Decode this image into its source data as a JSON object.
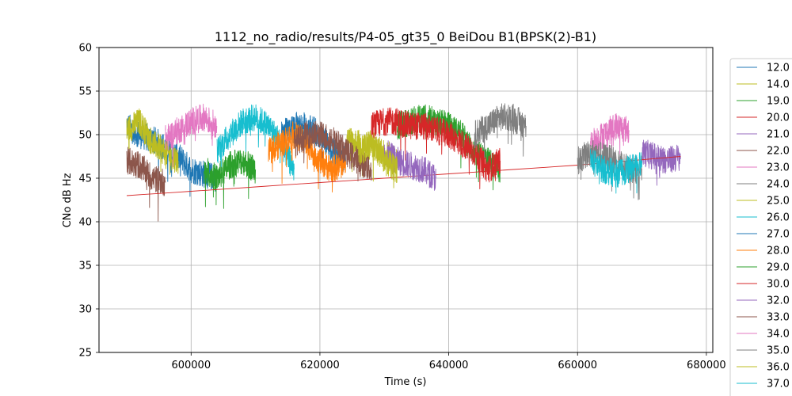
{
  "chart_data": {
    "type": "line",
    "title": "1112_no_radio/results/P4-05_gt35_0 BeiDou B1(BPSK(2)-B1)",
    "xlabel": "Time (s)",
    "ylabel": "CNo dB Hz",
    "xlim": [
      585700,
      681000
    ],
    "ylim": [
      25,
      60
    ],
    "xticks": [
      600000,
      620000,
      640000,
      660000,
      680000
    ],
    "yticks": [
      25,
      30,
      35,
      40,
      45,
      50,
      55,
      60
    ],
    "grid": true,
    "legend_position": "right, outside plot",
    "legend_visible_entries": [
      "12.0",
      "14.0",
      "19.0",
      "20.0",
      "21.0",
      "22.0",
      "23.0",
      "24.0",
      "25.0",
      "26.0",
      "27.0",
      "28.0",
      "29.0",
      "30.0",
      "32.0",
      "33.0",
      "34.0",
      "35.0",
      "36.0",
      "37.0"
    ],
    "series": [
      {
        "name": "12.0",
        "color": "#1f77b4",
        "x": [
          590000,
          592000,
          594000,
          596000,
          598000,
          600000,
          602000,
          604000
        ],
        "y": [
          51,
          50,
          49.5,
          48.5,
          47.5,
          46,
          45.5,
          45
        ]
      },
      {
        "name": "14.0",
        "color": "#bcbd22",
        "x": [
          590000,
          592000,
          594000,
          596000,
          598000
        ],
        "y": [
          50.5,
          51.5,
          49,
          48,
          47
        ]
      },
      {
        "name": "19.0",
        "color": "#2ca02c",
        "x": [
          632000,
          634000,
          636000,
          638000,
          640000,
          642000,
          644000,
          646000,
          648000
        ],
        "y": [
          51,
          51.5,
          52,
          51.5,
          51,
          50,
          48,
          47,
          46
        ]
      },
      {
        "name": "20.0",
        "color": "#d62728",
        "x": [
          628000,
          630000,
          632000,
          634000,
          636000,
          638000,
          640000,
          642000,
          644000,
          646000,
          648000
        ],
        "y": [
          51,
          51.5,
          51.5,
          51,
          51,
          50.5,
          50,
          49,
          48,
          46,
          47
        ]
      },
      {
        "name": "21.0",
        "color": "#9467bd",
        "x": [
          670000,
          672000,
          674000,
          676000
        ],
        "y": [
          48,
          47.5,
          47,
          47.5
        ]
      },
      {
        "name": "22.0",
        "color": "#8c564b",
        "x": [
          590000,
          592000,
          594000,
          596000
        ],
        "y": [
          47,
          46.5,
          45,
          44.5
        ]
      },
      {
        "name": "23.0",
        "color": "#e377c2",
        "x": [
          596000,
          598000,
          600000,
          602000,
          604000
        ],
        "y": [
          49.5,
          50.5,
          51.5,
          52,
          51
        ]
      },
      {
        "name": "24.0",
        "color": "#7f7f7f",
        "x": [
          644000,
          646000,
          648000,
          650000,
          652000
        ],
        "y": [
          50,
          51,
          52,
          52,
          51
        ]
      },
      {
        "name": "25.0",
        "color": "#bcbd22",
        "x": [
          624000,
          626000,
          628000,
          630000,
          632000
        ],
        "y": [
          49.5,
          49,
          48.5,
          48,
          47
        ]
      },
      {
        "name": "26.0",
        "color": "#17becf",
        "x": [
          604000,
          606000,
          608000,
          610000,
          612000,
          614000,
          616000
        ],
        "y": [
          48,
          50,
          51.5,
          52,
          51,
          49,
          46
        ]
      },
      {
        "name": "27.0",
        "color": "#1f77b4",
        "x": [
          614000,
          616000,
          618000,
          620000,
          622000,
          624000
        ],
        "y": [
          50,
          51,
          51,
          50,
          48,
          47
        ]
      },
      {
        "name": "28.0",
        "color": "#ff7f0e",
        "x": [
          612000,
          614000,
          616000,
          618000,
          620000,
          622000,
          624000
        ],
        "y": [
          48,
          49,
          50,
          49,
          47,
          46,
          47
        ]
      },
      {
        "name": "29.0",
        "color": "#2ca02c",
        "x": [
          602000,
          604000,
          606000,
          608000,
          610000
        ],
        "y": [
          46,
          45,
          46.5,
          47,
          46
        ]
      },
      {
        "name": "30.0",
        "color": "#d62728",
        "x": [
          590000,
          600000,
          620000,
          640000,
          660000,
          676000
        ],
        "y": [
          43,
          43.5,
          44.5,
          45.5,
          46.5,
          47.5
        ]
      },
      {
        "name": "32.0",
        "color": "#9467bd",
        "x": [
          630000,
          632000,
          634000,
          636000,
          638000
        ],
        "y": [
          48,
          47,
          46.5,
          46,
          45
        ]
      },
      {
        "name": "33.0",
        "color": "#8c564b",
        "x": [
          616000,
          618000,
          620000,
          622000,
          624000,
          626000,
          628000
        ],
        "y": [
          49,
          50,
          50,
          49.5,
          48,
          47,
          46
        ]
      },
      {
        "name": "34.0",
        "color": "#e377c2",
        "x": [
          662000,
          664000,
          666000,
          668000
        ],
        "y": [
          49,
          50,
          51,
          50.5
        ]
      },
      {
        "name": "35.0",
        "color": "#7f7f7f",
        "x": [
          660000,
          662000,
          664000,
          666000,
          668000,
          670000
        ],
        "y": [
          47,
          48,
          47.5,
          47,
          46,
          46
        ]
      },
      {
        "name": "36.0",
        "color": "#bcbd22",
        "x": [
          626000,
          628000,
          630000,
          632000
        ],
        "y": [
          48,
          49,
          47,
          46
        ]
      },
      {
        "name": "37.0",
        "color": "#17becf",
        "x": [
          662000,
          664000,
          666000,
          668000,
          670000
        ],
        "y": [
          47,
          46,
          45.5,
          46,
          47
        ]
      }
    ]
  }
}
